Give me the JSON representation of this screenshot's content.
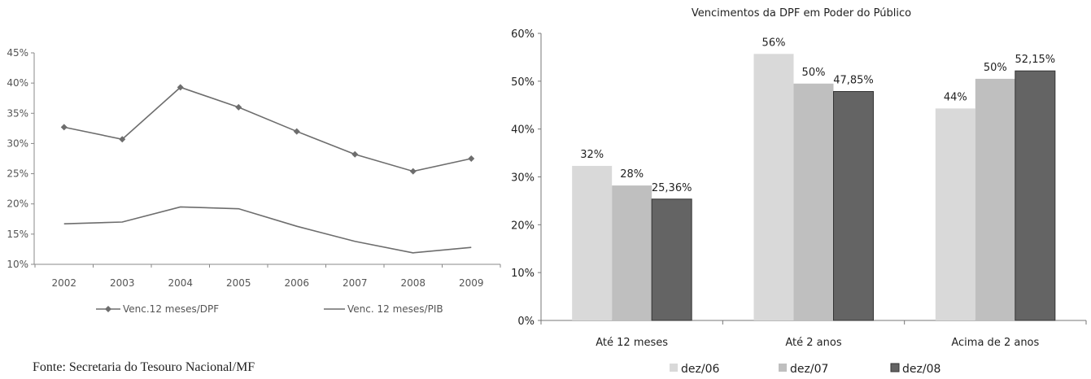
{
  "source_note": "Fonte: Secretaria do Tesouro Nacional/MF",
  "chart_data": [
    {
      "type": "line",
      "title": "",
      "xlabel": "",
      "ylabel": "",
      "x": [
        "2002",
        "2003",
        "2004",
        "2005",
        "2006",
        "2007",
        "2008",
        "2009"
      ],
      "yticks": [
        "10%",
        "15%",
        "20%",
        "25%",
        "30%",
        "35%",
        "40%",
        "45%"
      ],
      "ylim": [
        10,
        45
      ],
      "series": [
        {
          "name": "Venc.12 meses/DPF",
          "values": [
            32.7,
            30.7,
            39.3,
            36.0,
            32.0,
            28.2,
            25.4,
            27.5
          ],
          "marker": "diamond",
          "color": "#6d6d6d"
        },
        {
          "name": "Venc. 12 meses/PIB",
          "values": [
            16.7,
            17.0,
            19.5,
            19.2,
            16.3,
            13.8,
            11.9,
            12.8
          ],
          "marker": "none",
          "color": "#6d6d6d"
        }
      ],
      "legend": "bottom",
      "grid": false
    },
    {
      "type": "bar",
      "title": "Vencimentos da DPF em Poder do Público",
      "xlabel": "",
      "ylabel": "",
      "categories": [
        "Até 12 meses",
        "Até 2 anos",
        "Acima de 2 anos"
      ],
      "yticks": [
        "0%",
        "10%",
        "20%",
        "30%",
        "40%",
        "50%",
        "60%"
      ],
      "ylim": [
        0,
        60
      ],
      "series": [
        {
          "name": "dez/06",
          "values": [
            32.3,
            55.7,
            44.3
          ],
          "labels": [
            "32%",
            "56%",
            "44%"
          ],
          "color": "#d9d9d9"
        },
        {
          "name": "dez/07",
          "values": [
            28.2,
            49.5,
            50.5
          ],
          "labels": [
            "28%",
            "50%",
            "50%"
          ],
          "color": "#bfbfbf"
        },
        {
          "name": "dez/08",
          "values": [
            25.36,
            47.85,
            52.15
          ],
          "labels": [
            "25,36%",
            "47,85%",
            "52,15%"
          ],
          "color": "#646464"
        }
      ],
      "legend": "bottom",
      "grid": false
    }
  ]
}
